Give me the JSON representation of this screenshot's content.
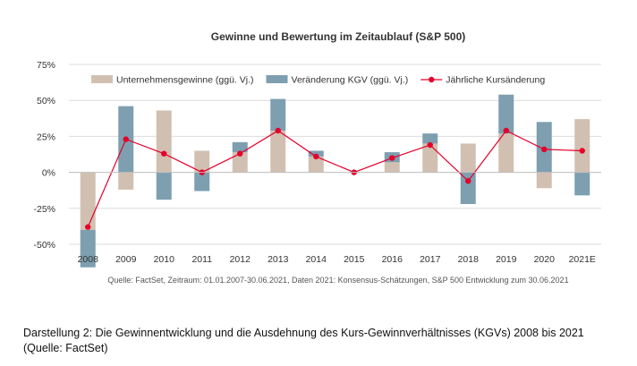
{
  "chart_data": {
    "type": "bar",
    "title": "Gewinne und Bewertung im Zeitaublauf (S&P 500)",
    "categories": [
      "2008",
      "2009",
      "2010",
      "2011",
      "2012",
      "2013",
      "2014",
      "2015",
      "2016",
      "2017",
      "2018",
      "2019",
      "2020",
      "2021E"
    ],
    "series": [
      {
        "name": "Unternehmensgewinne (ggü. Vj.)",
        "kind": "bar",
        "color": "#d1c0b1",
        "values": [
          -40,
          -12,
          43,
          15,
          14,
          29,
          11,
          0,
          7,
          20,
          20,
          27,
          -11,
          37
        ]
      },
      {
        "name": "Veränderung KGV (ggü. Vj.)",
        "kind": "bar",
        "color": "#7d9fb0",
        "values": [
          -26,
          46,
          -19,
          -13,
          7,
          22,
          4,
          0,
          7,
          7,
          -22,
          27,
          35,
          -16
        ]
      },
      {
        "name": "Jährliche Kursänderung",
        "kind": "line",
        "color": "#e4002b",
        "values": [
          -38,
          23,
          13,
          0,
          13,
          29,
          11,
          0,
          10,
          19,
          -6,
          29,
          16,
          15
        ]
      }
    ],
    "ylim": [
      -50,
      75
    ],
    "yticks": [
      "75%",
      "50%",
      "25%",
      "0%",
      "-25%",
      "-50%"
    ],
    "ytick_values": [
      75,
      50,
      25,
      0,
      -25,
      -50
    ],
    "grid": true,
    "legend": "top",
    "source": "Quelle: FactSet, Zeitraum: 01.01.2007-30.06.2021, Daten 2021: Konsensus-Schätzungen, S&P 500 Entwicklung zum 30.06.2021"
  },
  "caption": "Darstellung 2: Die Gewinnentwicklung und die Ausdehnung des Kurs-Gewinnverhältnisses (KGVs) 2008 bis 2021 (Quelle: FactSet)"
}
